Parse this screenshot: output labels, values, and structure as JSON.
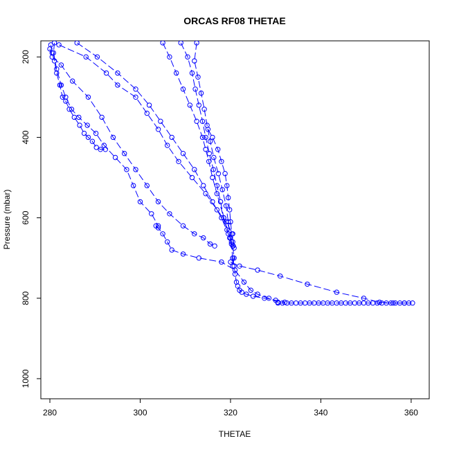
{
  "chart_data": {
    "type": "scatter",
    "title": "ORCAS RF08 THETAE",
    "xlabel": "THETAE",
    "ylabel": "Pressure (mbar)",
    "xlim": [
      278,
      364
    ],
    "ylim": [
      1050,
      160
    ],
    "y_axis_inverted": true,
    "grid": false,
    "legend": "none",
    "color": "#0000ff",
    "marker": "open-circle",
    "line_style": "dashed",
    "xticks": [
      "280",
      "300",
      "320",
      "340",
      "360"
    ],
    "yticks": [
      "200",
      "400",
      "600",
      "800",
      "1000"
    ],
    "xtick_values": [
      280,
      300,
      320,
      340,
      360
    ],
    "ytick_values": [
      200,
      400,
      600,
      800,
      1000
    ],
    "series": [
      {
        "x": [
          280.2,
          280.5,
          281.0,
          281.5,
          282.2,
          282.8,
          283.5,
          284.3,
          285.4,
          286.6,
          287.6,
          288.5,
          289.4,
          290.3,
          291.2,
          292.3
        ],
        "y": [
          170,
          190,
          210,
          240,
          270,
          300,
          310,
          330,
          350,
          370,
          390,
          400,
          410,
          425,
          430,
          430
        ]
      },
      {
        "x": [
          281.0,
          280.8,
          281.5,
          282.5,
          283.5,
          284.8,
          286.4,
          288.3,
          290.2,
          292.0,
          294.5,
          297.0,
          298.5,
          300.0,
          302.5,
          304.0
        ],
        "y": [
          165,
          190,
          230,
          270,
          300,
          330,
          350,
          370,
          390,
          420,
          450,
          480,
          520,
          560,
          590,
          620
        ]
      },
      {
        "x": [
          280.0,
          280.5,
          282.5,
          285.0,
          288.5,
          291.5,
          294.0,
          296.5,
          299.0,
          301.5,
          304.0,
          306.5,
          309.5,
          312.0,
          314.0,
          315.5,
          316.5
        ],
        "y": [
          180,
          200,
          220,
          260,
          300,
          350,
          400,
          440,
          480,
          520,
          560,
          590,
          620,
          640,
          650,
          665,
          670
        ]
      },
      {
        "x": [
          282.0,
          288.0,
          292.5,
          295.0,
          299.0,
          301.5,
          304.0,
          306.0,
          308.5,
          311.5,
          314.5,
          317.0,
          319.0,
          320.5
        ],
        "y": [
          170,
          200,
          240,
          270,
          300,
          340,
          380,
          420,
          460,
          500,
          540,
          580,
          610,
          640
        ]
      },
      {
        "x": [
          286.0,
          290.5,
          295.0,
          299.0,
          302.0,
          304.5,
          307.0,
          309.5,
          312.0,
          314.0,
          316.0,
          318.0,
          319.5,
          320.5,
          320.8,
          320.5
        ],
        "y": [
          165,
          200,
          240,
          280,
          320,
          360,
          400,
          440,
          480,
          520,
          560,
          600,
          640,
          670,
          700,
          720
        ]
      },
      {
        "x": [
          309.0,
          310.5,
          311.5,
          312.2,
          313.0,
          313.8,
          314.5,
          315.3,
          316.2,
          317.0,
          317.8,
          318.5,
          319.2,
          319.8,
          320.2,
          320.6
        ],
        "y": [
          165,
          200,
          240,
          280,
          320,
          360,
          400,
          440,
          480,
          520,
          560,
          600,
          630,
          650,
          665,
          670
        ]
      },
      {
        "x": [
          312.5,
          312.0,
          312.8,
          313.5,
          314.2,
          314.8,
          315.5,
          316.3,
          317.3,
          318.2,
          319.0,
          319.5,
          320.0,
          320.5
        ],
        "y": [
          165,
          210,
          250,
          290,
          330,
          370,
          410,
          450,
          490,
          530,
          570,
          610,
          650,
          700
        ]
      },
      {
        "x": [
          305.0,
          306.5,
          308.0,
          309.5,
          311.0,
          312.5,
          313.8,
          314.5,
          315.2,
          316.0,
          317.0,
          318.5,
          320.2
        ],
        "y": [
          165,
          200,
          240,
          280,
          320,
          360,
          400,
          430,
          460,
          500,
          540,
          600,
          660
        ]
      },
      {
        "x": [
          315.0,
          316.0,
          317.2,
          318.0,
          318.8,
          319.2,
          319.5,
          319.8,
          320.0,
          320.3,
          320.5,
          320.8
        ],
        "y": [
          380,
          400,
          430,
          460,
          490,
          520,
          550,
          580,
          610,
          640,
          660,
          675
        ]
      },
      {
        "x": [
          303.5,
          304.0,
          305.0,
          306.0,
          307.0,
          309.5,
          313.0,
          318.0,
          321.0,
          323.0,
          324.5,
          326.0,
          328.5,
          330.5
        ],
        "y": [
          620,
          625,
          640,
          660,
          680,
          690,
          700,
          710,
          730,
          760,
          780,
          790,
          800,
          810
        ]
      },
      {
        "x": [
          320.5,
          320.8,
          321.0,
          321.3,
          321.6,
          322.0,
          322.5,
          323.5,
          325.0,
          327.5,
          330.0,
          332.0
        ],
        "y": [
          700,
          720,
          740,
          760,
          770,
          780,
          785,
          790,
          795,
          800,
          805,
          810
        ]
      },
      {
        "x": [
          320.0,
          322.0,
          326.0,
          331.0,
          337.0,
          343.5,
          349.5,
          353.0,
          356.0,
          358.5
        ],
        "y": [
          710,
          720,
          730,
          745,
          765,
          785,
          800,
          810,
          812,
          812
        ]
      },
      {
        "x": [
          330.5,
          331.5,
          332.5,
          333.5,
          334.5,
          335.5,
          336.5,
          337.5,
          338.5,
          339.5,
          340.5,
          341.5,
          342.5,
          343.5,
          344.5,
          345.5,
          346.5,
          347.5,
          348.5,
          349.5,
          350.5,
          351.5,
          352.5,
          353.5,
          354.5,
          355.5,
          356.5,
          357.5,
          358.5,
          359.5,
          360.3
        ],
        "y": [
          812,
          812,
          812,
          812,
          812,
          812,
          812,
          812,
          812,
          812,
          812,
          812,
          812,
          812,
          812,
          812,
          812,
          812,
          812,
          812,
          812,
          812,
          812,
          812,
          812,
          812,
          812,
          812,
          812,
          812,
          812
        ]
      }
    ]
  }
}
